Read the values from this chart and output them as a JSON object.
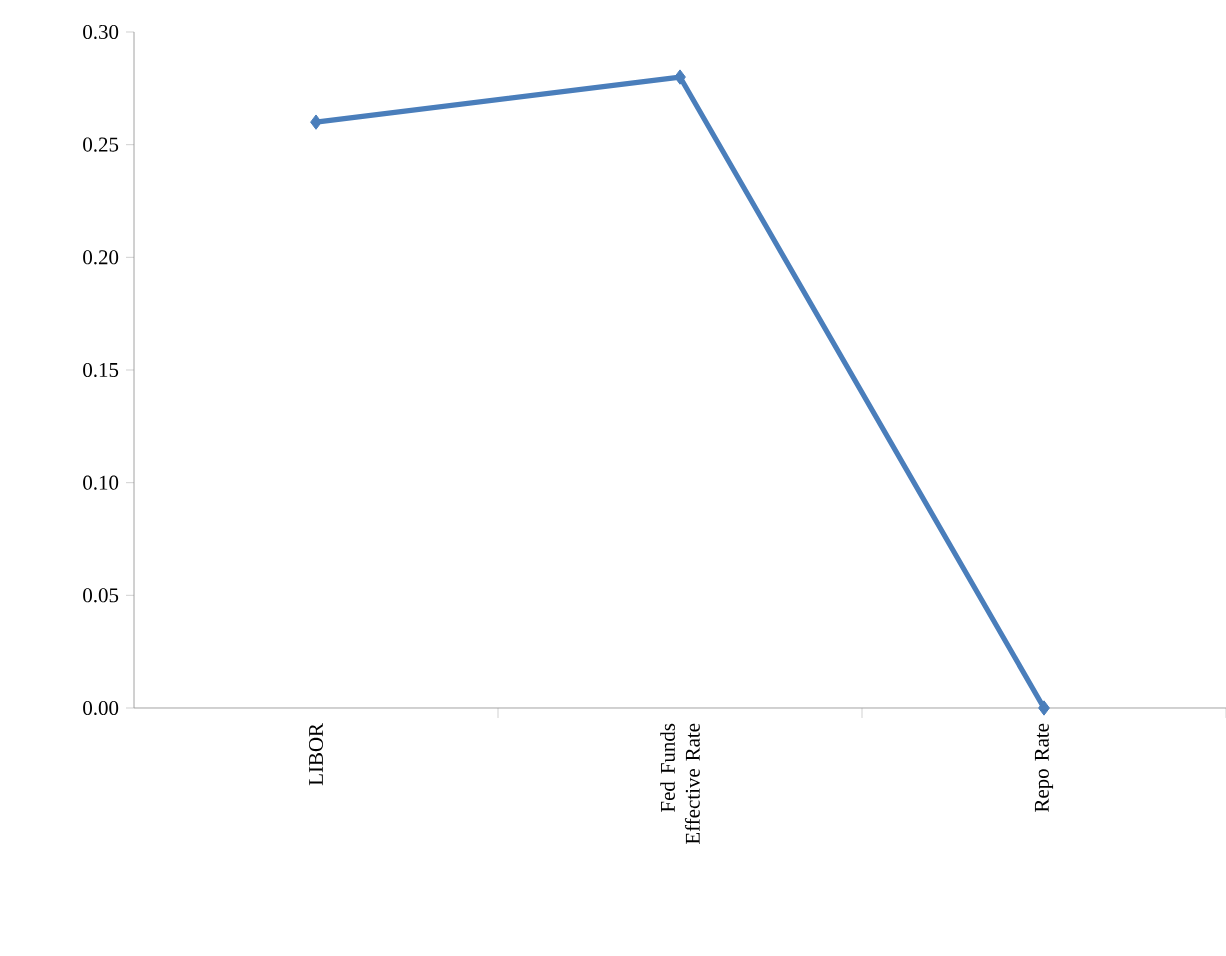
{
  "chart_data": {
    "type": "line",
    "categories": [
      "LIBOR",
      "Fed Funds Effective Rate",
      "Repo Rate"
    ],
    "values": [
      0.26,
      0.28,
      0.0
    ],
    "color": "#4a7ebb",
    "marker": "diamond",
    "ylim": [
      0,
      0.3
    ],
    "yticks": [
      {
        "value": 0,
        "label": "0.00"
      },
      {
        "value": 0.05,
        "label": "0.05"
      },
      {
        "value": 0.1,
        "label": "0.10"
      },
      {
        "value": 0.15,
        "label": "0.15"
      },
      {
        "value": 0.2,
        "label": "0.20"
      },
      {
        "value": 0.25,
        "label": "0.25"
      },
      {
        "value": 0.3,
        "label": "0.30"
      }
    ]
  }
}
